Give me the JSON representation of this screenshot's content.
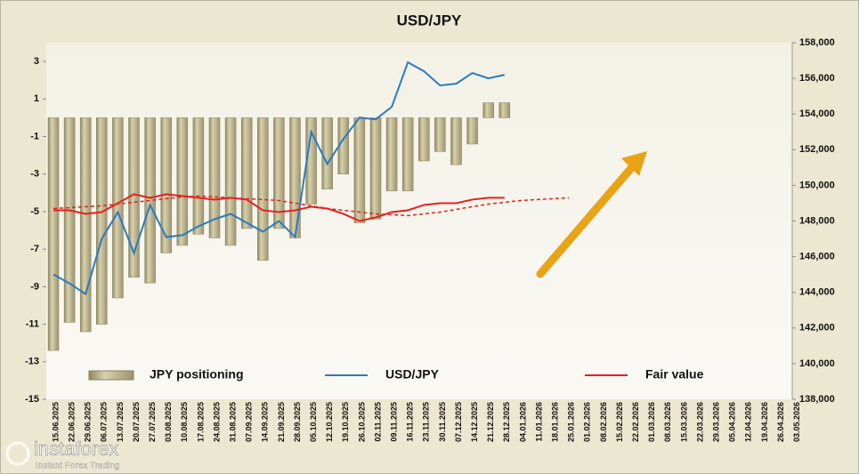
{
  "chart_data": {
    "type": "bar-line",
    "title": "USD/JPY",
    "categories": [
      "15.06.2025",
      "22.06.2025",
      "29.06.2025",
      "06.07.2025",
      "13.07.2025",
      "20.07.2025",
      "27.07.2025",
      "03.08.2025",
      "10.08.2025",
      "17.08.2025",
      "24.08.2025",
      "31.08.2025",
      "07.09.2025",
      "14.09.2025",
      "21.09.2025",
      "28.09.2025",
      "05.10.2025",
      "12.10.2025",
      "19.10.2025",
      "26.10.2025",
      "02.11.2025",
      "09.11.2025",
      "16.11.2025",
      "23.11.2025",
      "30.11.2025",
      "07.12.2025",
      "14.12.2025",
      "21.12.2025",
      "28.12.2025",
      "04.01.2026",
      "11.01.2026",
      "18.01.2026",
      "25.01.2026",
      "01.02.2026",
      "08.02.2026",
      "15.02.2026",
      "22.02.2026",
      "01.03.2026",
      "08.03.2026",
      "15.03.2026",
      "22.03.2026",
      "29.03.2026",
      "05.04.2026",
      "12.04.2026",
      "19.04.2026",
      "26.04.2026",
      "03.05.2026"
    ],
    "series": [
      {
        "name": "JPY positioning",
        "color": "#b8b08a",
        "kind": "bar",
        "values": [
          -12.4,
          -10.9,
          -11.4,
          -11.0,
          -9.6,
          -8.5,
          -8.8,
          -7.2,
          -6.8,
          -6.2,
          -6.4,
          -6.8,
          -5.9,
          -7.6,
          -5.9,
          -6.4,
          -4.6,
          -3.8,
          -3.0,
          -5.6,
          -5.4,
          -3.9,
          -3.9,
          -2.3,
          -1.8,
          -2.5,
          -1.4,
          0.8,
          0.8,
          null,
          null,
          null,
          null,
          null,
          null,
          null,
          null,
          null,
          null,
          null,
          null,
          null,
          null,
          null,
          null,
          null,
          null
        ]
      },
      {
        "name": "USD/JPY",
        "color": "#2a7bc0",
        "kind": "line",
        "axis": "y2",
        "values": [
          145000,
          144500,
          143900,
          147000,
          148500,
          146200,
          148900,
          147100,
          147200,
          147700,
          148100,
          148400,
          147900,
          147400,
          148000,
          147100,
          153000,
          151200,
          152600,
          153800,
          153700,
          154400,
          156900,
          156400,
          155600,
          155700,
          156300,
          156000,
          156200,
          null,
          null,
          null,
          null,
          null,
          null,
          null,
          null,
          null,
          null,
          null,
          null,
          null,
          null,
          null,
          null,
          null,
          null
        ]
      },
      {
        "name": "Fair value",
        "color": "#e8201a",
        "kind": "line",
        "axis": "y2",
        "values": [
          148600,
          148600,
          148400,
          148500,
          149000,
          149500,
          149300,
          149500,
          149400,
          149300,
          149200,
          149300,
          149200,
          148600,
          148500,
          148600,
          148800,
          148700,
          148400,
          148000,
          148200,
          148500,
          148600,
          148900,
          149000,
          149000,
          149200,
          149300,
          149300,
          null,
          null,
          null,
          null,
          null,
          null,
          null,
          null,
          null,
          null,
          null,
          null,
          null,
          null,
          null,
          null,
          null,
          null
        ]
      }
    ],
    "trend": {
      "color": "#e8201a",
      "axis": "y2",
      "values": [
        148700,
        148750,
        148800,
        148850,
        148950,
        149050,
        149150,
        149250,
        149350,
        149400,
        149350,
        149300,
        149250,
        149200,
        149150,
        149000,
        148850,
        148700,
        148600,
        148500,
        148400,
        148350,
        148300,
        148400,
        148500,
        148650,
        148800,
        148950,
        149050,
        149150,
        149200,
        149250,
        149300,
        null,
        null,
        null,
        null,
        null,
        null,
        null,
        null,
        null,
        null,
        null,
        null,
        null,
        null
      ]
    },
    "ylim": [
      -15,
      4
    ],
    "yticks": [
      -15,
      -13,
      -11,
      -9,
      -7,
      -5,
      -3,
      -1,
      1,
      3
    ],
    "y2lim": [
      138000,
      158000
    ],
    "y2ticks": [
      {
        "value": 138000,
        "label": "138,000"
      },
      {
        "value": 140000,
        "label": "140,000"
      },
      {
        "value": 142000,
        "label": "142,000"
      },
      {
        "value": 144000,
        "label": "144,000"
      },
      {
        "value": 146000,
        "label": "146,000"
      },
      {
        "value": 148000,
        "label": "148,000"
      },
      {
        "value": 150000,
        "label": "150,000"
      },
      {
        "value": 152000,
        "label": "152,000"
      },
      {
        "value": 154000,
        "label": "154,000"
      },
      {
        "value": 156000,
        "label": "156,000"
      },
      {
        "value": 158000,
        "label": "158,000"
      }
    ],
    "grid": false
  },
  "watermark": {
    "brand": "instaforex",
    "tagline": "Instant Forex Trading"
  }
}
